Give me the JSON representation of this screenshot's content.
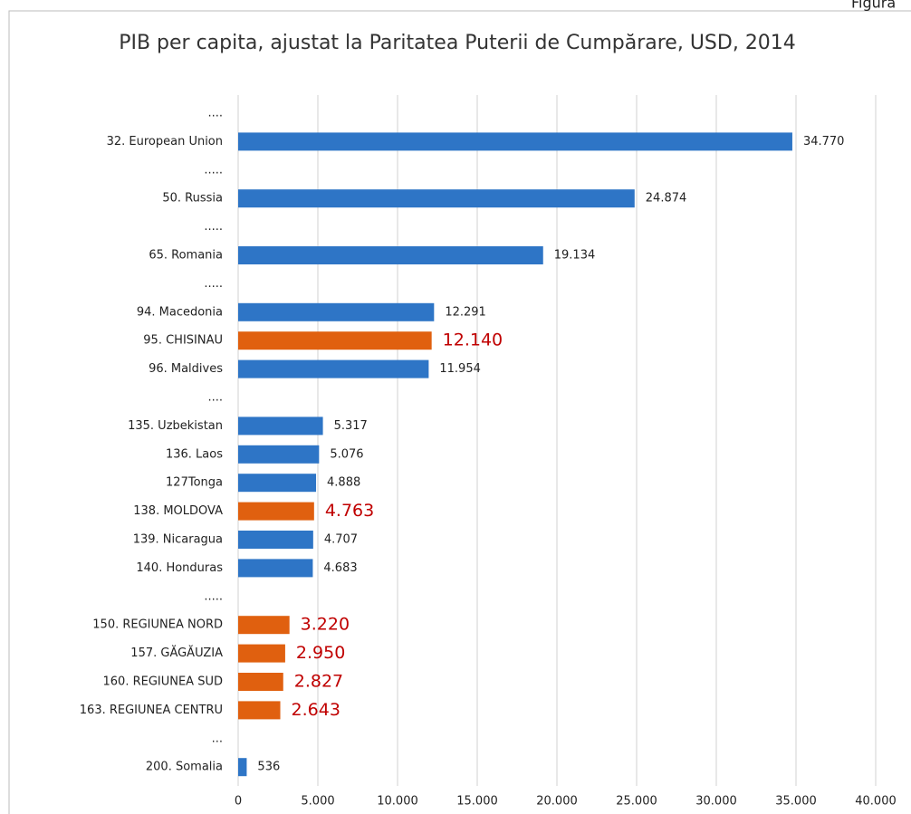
{
  "note": "Figura",
  "chart_data": {
    "type": "bar",
    "orientation": "horizontal",
    "title": "PIB per capita, ajustat la Paritatea Puterii de Cumpărare, USD, 2014",
    "categories": [
      "....",
      "32. European Union",
      ".....",
      "50. Russia",
      ".....",
      "65. Romania",
      ".....",
      "94. Macedonia",
      "95. CHISINAU",
      "96. Maldives",
      "....",
      "135. Uzbekistan",
      "136. Laos",
      "127Tonga",
      "138. MOLDOVA",
      "139. Nicaragua",
      "140. Honduras",
      ".....",
      "150. REGIUNEA NORD",
      "157. GĂGĂUZIA",
      "160. REGIUNEA SUD",
      "163. REGIUNEA CENTRU",
      "...",
      "200. Somalia"
    ],
    "values": [
      null,
      34770,
      null,
      24874,
      null,
      19134,
      null,
      12291,
      12140,
      11954,
      null,
      5317,
      5076,
      4888,
      4763,
      4707,
      4683,
      null,
      3220,
      2950,
      2827,
      2643,
      null,
      536
    ],
    "value_labels": [
      null,
      "34.770",
      null,
      "24.874",
      null,
      "19.134",
      null,
      "12.291",
      "12.140",
      "11.954",
      null,
      "5.317",
      "5.076",
      "4.888",
      "4.763",
      "4.707",
      "4.683",
      null,
      "3.220",
      "2.950",
      "2.827",
      "2.643",
      null,
      "536"
    ],
    "colors": [
      null,
      "#2e75c6",
      null,
      "#2e75c6",
      null,
      "#2e75c6",
      null,
      "#2e75c6",
      "#e0600f",
      "#2e75c6",
      null,
      "#2e75c6",
      "#2e75c6",
      "#2e75c6",
      "#e0600f",
      "#2e75c6",
      "#2e75c6",
      null,
      "#e0600f",
      "#e0600f",
      "#e0600f",
      "#e0600f",
      null,
      "#2e75c6"
    ],
    "highlight_color": "#e0600f",
    "highlight_label_color": "#c00000",
    "xlim": [
      0,
      40000
    ],
    "xticks": [
      0,
      {
        "value": 5000,
        "label": "5.000"
      },
      {
        "value": 10000,
        "label": "10.000"
      },
      {
        "value": 15000,
        "label": "15.000"
      },
      {
        "value": 20000,
        "label": "20.000"
      },
      {
        "value": 25000,
        "label": "25.000"
      },
      {
        "value": 30000,
        "label": "30.000"
      },
      {
        "value": 35000,
        "label": "35.000"
      },
      {
        "value": 40000,
        "label": "40.000"
      }
    ],
    "grid": true
  }
}
